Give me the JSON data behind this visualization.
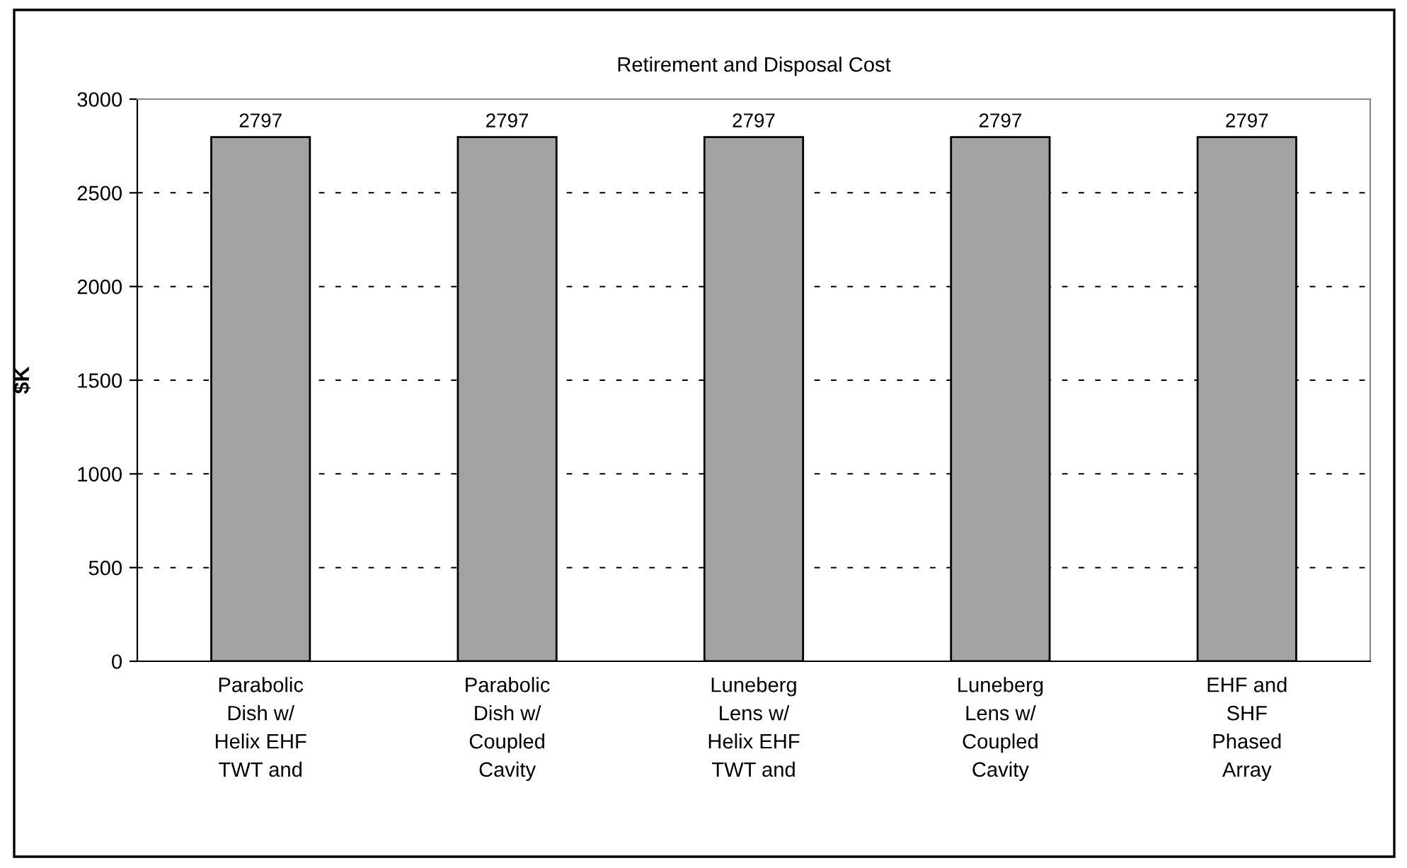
{
  "chart_data": {
    "type": "bar",
    "title": "Retirement and Disposal Cost",
    "ylabel": "$K",
    "categories": [
      "Parabolic\nDish w/\nHelix EHF\nTWT and",
      "Parabolic\nDish w/\nCoupled\nCavity",
      "Luneberg\nLens w/\nHelix EHF\nTWT and",
      "Luneberg\nLens w/\nCoupled\nCavity",
      "EHF and\nSHF\nPhased\nArray"
    ],
    "values": [
      2797,
      2797,
      2797,
      2797,
      2797
    ],
    "color": "#a3a3a3",
    "ylim": [
      0,
      3000
    ],
    "yticks": [
      0,
      500,
      1000,
      1500,
      2000,
      2500,
      3000
    ],
    "grid": "y",
    "data_labels": true
  }
}
